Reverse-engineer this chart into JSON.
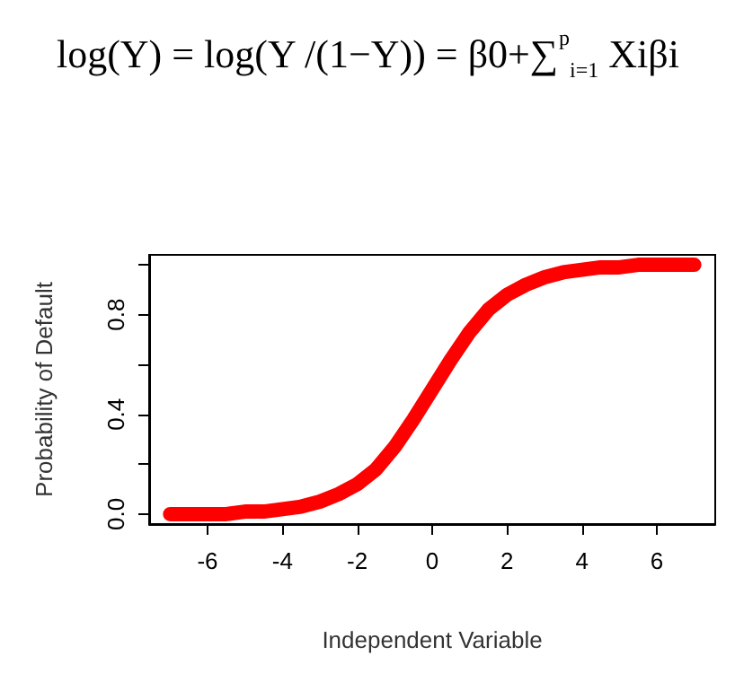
{
  "chart_data": {
    "type": "line",
    "title": "log(Y) = log(Y /(1−Y)) = β0+∑$^{p}$$_{i=1}$ Xiβi",
    "xlabel": "Independent Variable",
    "ylabel": "Probability of Default",
    "x": [
      -7,
      -6.5,
      -6,
      -5.5,
      -5,
      -4.5,
      -4,
      -3.5,
      -3,
      -2.5,
      -2,
      -1.5,
      -1,
      -0.5,
      0,
      0.5,
      1,
      1.5,
      2,
      2.5,
      3,
      3.5,
      4,
      4.5,
      5,
      5.5,
      6,
      6.5,
      7
    ],
    "series": [
      {
        "color": "#ff0000",
        "values": [
          0.0,
          0.0,
          0.0,
          0.0,
          0.01,
          0.01,
          0.02,
          0.03,
          0.05,
          0.08,
          0.12,
          0.18,
          0.27,
          0.38,
          0.5,
          0.62,
          0.73,
          0.82,
          0.88,
          0.92,
          0.95,
          0.97,
          0.98,
          0.99,
          0.99,
          1.0,
          1.0,
          1.0,
          1.0
        ]
      }
    ],
    "xlim": [
      -7.56,
      7.56
    ],
    "xticks": [
      -6,
      -4,
      -2,
      0,
      2,
      4,
      6
    ],
    "ylim": [
      -0.04,
      1.04
    ],
    "yticks": [
      {
        "value": 0,
        "label": "0.0"
      },
      {
        "value": 0.2,
        "label": null
      },
      0.4,
      {
        "value": 0.6,
        "label": null
      },
      0.8,
      {
        "value": 1.0,
        "label": null
      }
    ],
    "marker": "none",
    "line_style": "solid",
    "grid": false
  }
}
